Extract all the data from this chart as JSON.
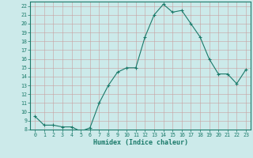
{
  "x": [
    0,
    1,
    2,
    3,
    4,
    5,
    6,
    7,
    8,
    9,
    10,
    11,
    12,
    13,
    14,
    15,
    16,
    17,
    18,
    19,
    20,
    21,
    22,
    23
  ],
  "y": [
    9.5,
    8.5,
    8.5,
    8.3,
    8.3,
    7.8,
    8.2,
    11.0,
    13.0,
    14.5,
    15.0,
    15.0,
    18.5,
    21.0,
    22.2,
    21.3,
    21.5,
    20.0,
    18.5,
    16.0,
    14.3,
    14.3,
    13.2,
    14.8
  ],
  "xlabel": "Humidex (Indice chaleur)",
  "ylim": [
    8,
    22.5
  ],
  "xlim": [
    -0.5,
    23.5
  ],
  "yticks": [
    8,
    9,
    10,
    11,
    12,
    13,
    14,
    15,
    16,
    17,
    18,
    19,
    20,
    21,
    22
  ],
  "xticks": [
    0,
    1,
    2,
    3,
    4,
    5,
    6,
    7,
    8,
    9,
    10,
    11,
    12,
    13,
    14,
    15,
    16,
    17,
    18,
    19,
    20,
    21,
    22,
    23
  ],
  "line_color": "#1a7a6a",
  "marker_color": "#1a7a6a",
  "bg_color": "#cceaea",
  "grid_color": "#aacece",
  "border_color": "#1a7a6a",
  "label_fontsize": 5.5,
  "tick_fontsize": 4.8,
  "xlabel_fontsize": 6.0
}
